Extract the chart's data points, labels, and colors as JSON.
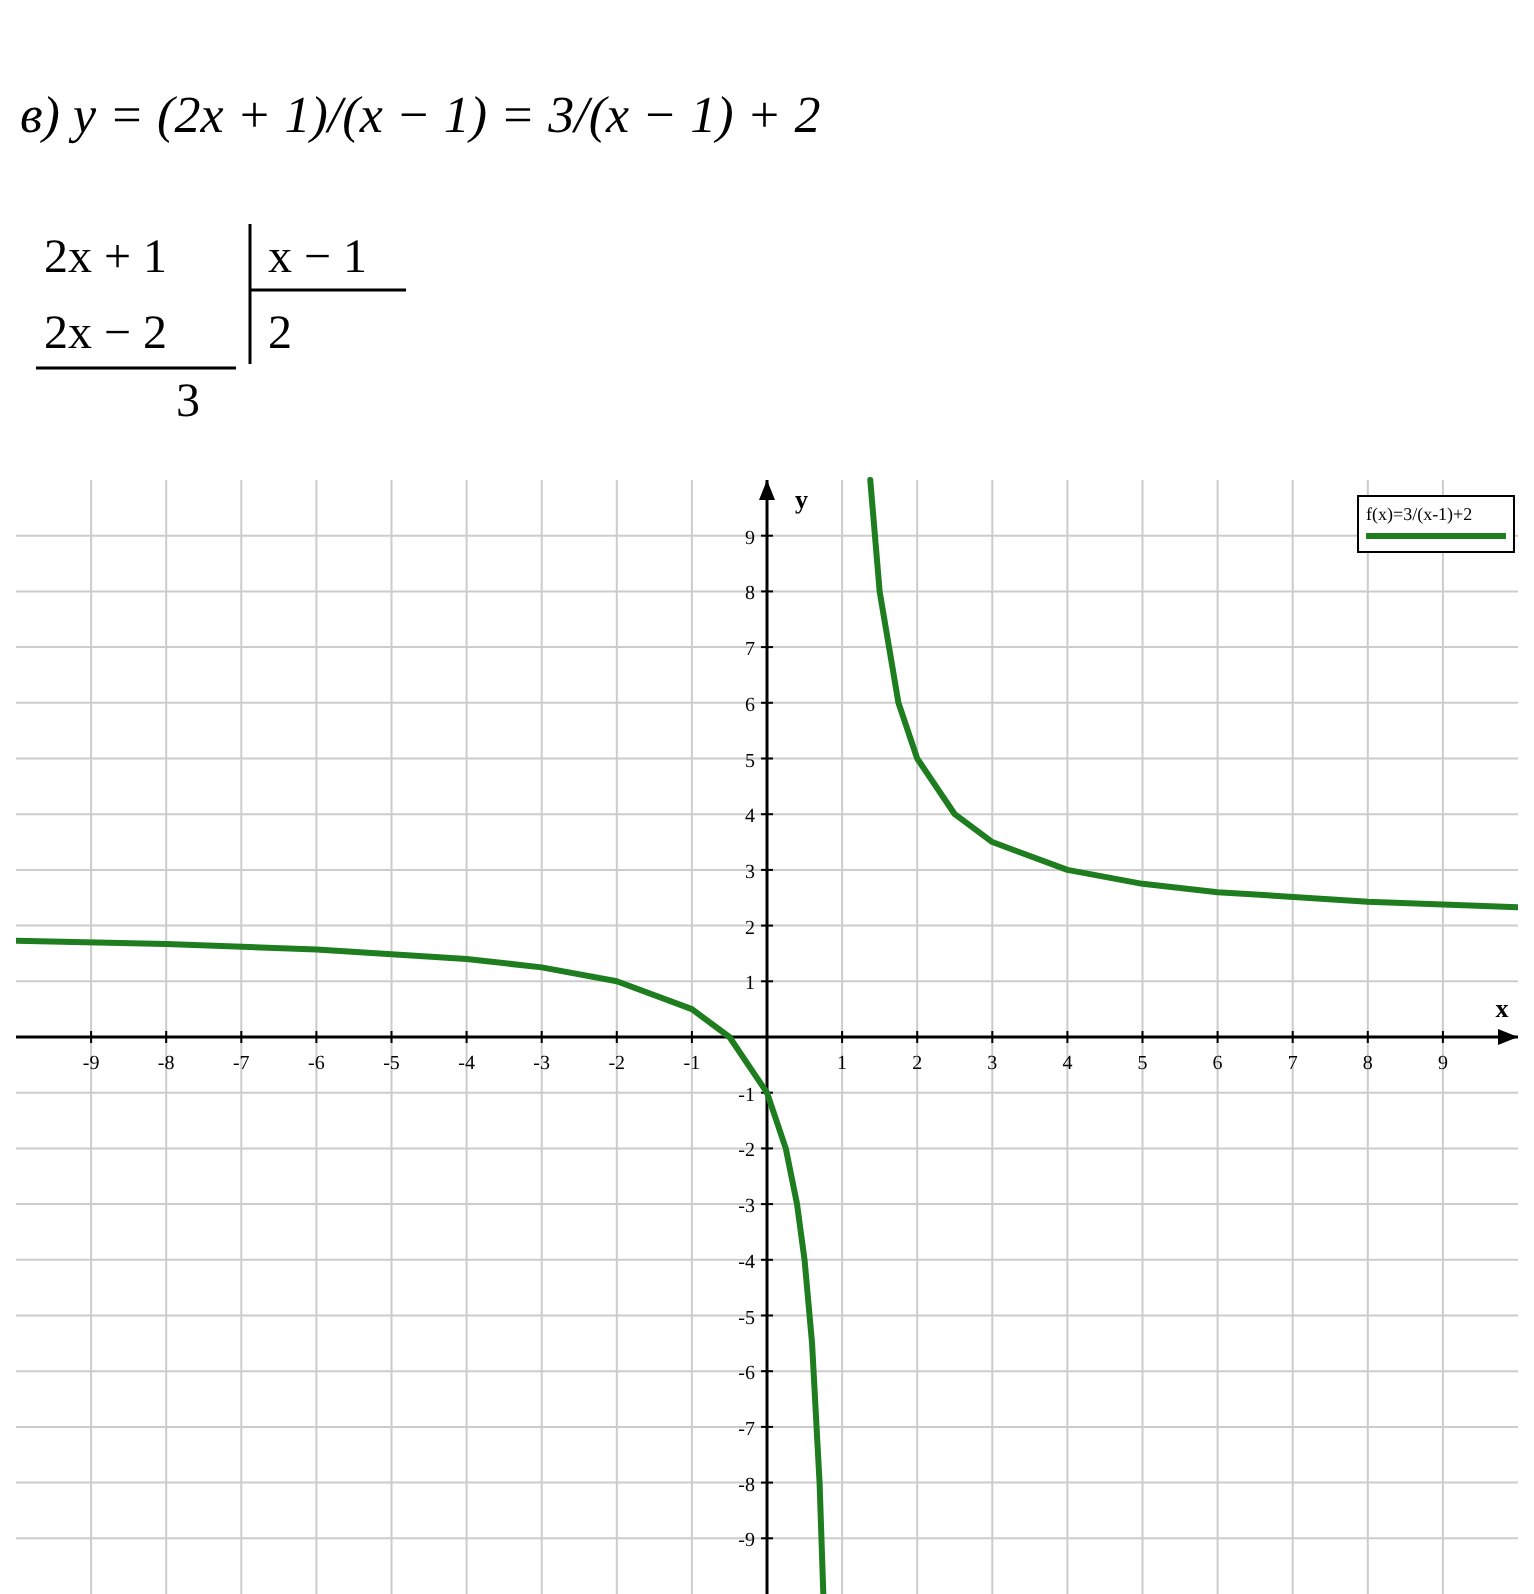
{
  "chart_data": {
    "type": "line",
    "title": "в) y = (2x + 1)/(x − 1) = 3/(x − 1) + 2",
    "annotations": [
      "2x + 1",
      "x − 1",
      "2x − 2",
      "2",
      "3"
    ],
    "xlabel": "x",
    "ylabel": "y",
    "xlim": [
      -10,
      10
    ],
    "ylim": [
      -10,
      10
    ],
    "xticks": [
      -9,
      -8,
      -7,
      -6,
      -5,
      -4,
      -3,
      -2,
      -1,
      1,
      2,
      3,
      4,
      5,
      6,
      7,
      8,
      9
    ],
    "yticks": [
      -9,
      -8,
      -7,
      -6,
      -5,
      -4,
      -3,
      -2,
      -1,
      1,
      2,
      3,
      4,
      5,
      6,
      7,
      8,
      9
    ],
    "grid": true,
    "legend": "top right",
    "marker": "none",
    "line_style": "solid",
    "series": [
      {
        "name": "f(x)=3/(x-1)+2",
        "color": "#1e7d1e",
        "x": [
          -10,
          -8,
          -6,
          -4,
          -3,
          -2,
          -1,
          -0.5,
          0,
          0.25,
          0.4,
          0.5,
          0.6,
          0.7,
          0.75,
          1,
          1.375,
          1.5,
          1.75,
          2,
          2.5,
          3,
          4,
          5,
          6,
          8,
          10
        ],
        "values": [
          1.73,
          1.67,
          1.57,
          1.4,
          1.25,
          1,
          0.5,
          0,
          -1,
          -2,
          -3,
          -4,
          -5.5,
          -8,
          -10,
          null,
          10,
          8,
          6,
          5,
          4,
          3.5,
          3,
          2.75,
          2.6,
          2.43,
          2.33
        ]
      }
    ]
  }
}
